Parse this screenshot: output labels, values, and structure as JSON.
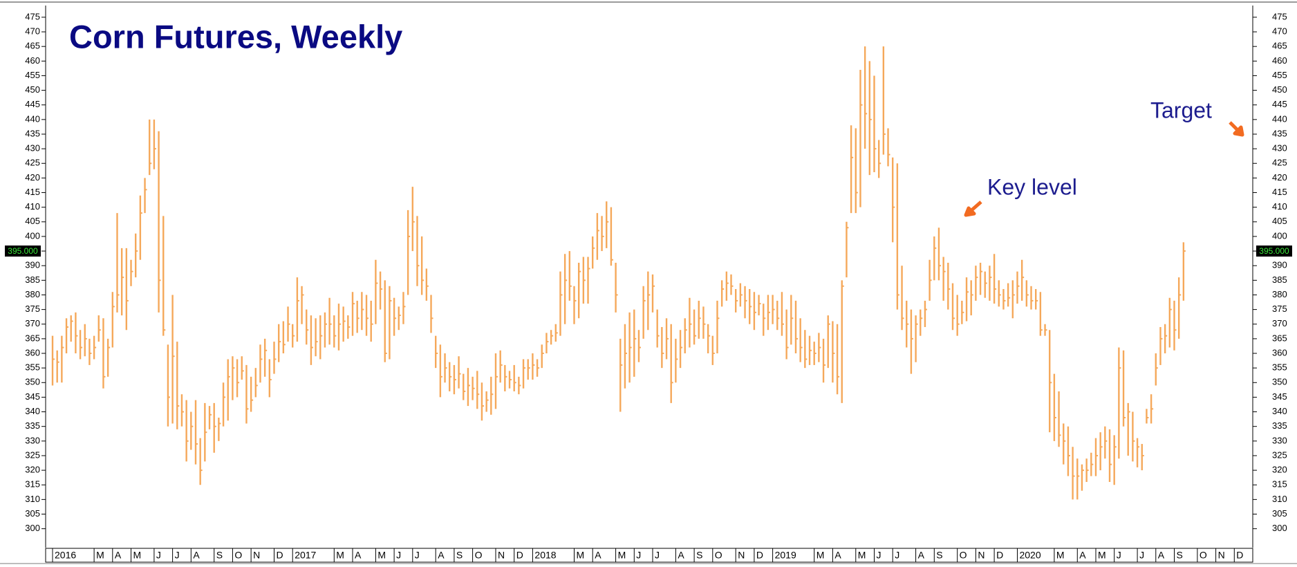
{
  "chart_data": {
    "type": "ohlc",
    "title": "Corn Futures, Weekly",
    "annotations": [
      "Key level",
      "Target"
    ],
    "price_label": {
      "value": 395,
      "label": "395.000"
    },
    "ylim": [
      294,
      479
    ],
    "yticks": [
      300,
      305,
      310,
      315,
      320,
      325,
      330,
      335,
      340,
      345,
      350,
      355,
      360,
      365,
      370,
      375,
      380,
      385,
      390,
      395,
      400,
      405,
      410,
      415,
      420,
      425,
      430,
      435,
      440,
      445,
      450,
      455,
      460,
      465,
      470,
      475
    ],
    "xlim": [
      -1.5,
      260
    ],
    "xticks": [
      {
        "value": 0,
        "label": "2016"
      },
      {
        "value": 9,
        "label": "M"
      },
      {
        "value": 13,
        "label": "A"
      },
      {
        "value": 17,
        "label": "M"
      },
      {
        "value": 22,
        "label": "J"
      },
      {
        "value": 26,
        "label": "J"
      },
      {
        "value": 30,
        "label": "A"
      },
      {
        "value": 35,
        "label": "S"
      },
      {
        "value": 39,
        "label": "O"
      },
      {
        "value": 43,
        "label": "N"
      },
      {
        "value": 48,
        "label": "D"
      },
      {
        "value": 52,
        "label": "2017"
      },
      {
        "value": 61,
        "label": "M"
      },
      {
        "value": 65,
        "label": "A"
      },
      {
        "value": 70,
        "label": "M"
      },
      {
        "value": 74,
        "label": "J"
      },
      {
        "value": 78,
        "label": "J"
      },
      {
        "value": 83,
        "label": "A"
      },
      {
        "value": 87,
        "label": "S"
      },
      {
        "value": 91,
        "label": "O"
      },
      {
        "value": 96,
        "label": "N"
      },
      {
        "value": 100,
        "label": "D"
      },
      {
        "value": 104,
        "label": "2018"
      },
      {
        "value": 113,
        "label": "M"
      },
      {
        "value": 117,
        "label": "A"
      },
      {
        "value": 122,
        "label": "M"
      },
      {
        "value": 126,
        "label": "J"
      },
      {
        "value": 130,
        "label": "J"
      },
      {
        "value": 135,
        "label": "A"
      },
      {
        "value": 139,
        "label": "S"
      },
      {
        "value": 143,
        "label": "O"
      },
      {
        "value": 148,
        "label": "N"
      },
      {
        "value": 152,
        "label": "D"
      },
      {
        "value": 156,
        "label": "2019"
      },
      {
        "value": 165,
        "label": "M"
      },
      {
        "value": 169,
        "label": "A"
      },
      {
        "value": 174,
        "label": "M"
      },
      {
        "value": 178,
        "label": "J"
      },
      {
        "value": 182,
        "label": "J"
      },
      {
        "value": 187,
        "label": "A"
      },
      {
        "value": 191,
        "label": "S"
      },
      {
        "value": 196,
        "label": "O"
      },
      {
        "value": 200,
        "label": "N"
      },
      {
        "value": 204,
        "label": "D"
      },
      {
        "value": 209,
        "label": "2020"
      },
      {
        "value": 217,
        "label": "M"
      },
      {
        "value": 222,
        "label": "A"
      },
      {
        "value": 226,
        "label": "M"
      },
      {
        "value": 230,
        "label": "J"
      },
      {
        "value": 235,
        "label": "J"
      },
      {
        "value": 239,
        "label": "A"
      },
      {
        "value": 243,
        "label": "S"
      },
      {
        "value": 248,
        "label": "O"
      },
      {
        "value": 252,
        "label": "N"
      },
      {
        "value": 256,
        "label": "D"
      }
    ],
    "series": [
      {
        "color": "#f5a85a",
        "high": [
          366,
          361,
          366,
          372,
          373,
          374,
          368,
          370,
          365,
          366,
          373,
          372,
          365,
          381,
          408,
          396,
          396,
          392,
          401,
          414,
          420,
          440,
          440,
          436,
          407,
          363,
          380,
          364,
          346,
          344,
          340,
          344,
          331,
          343,
          342,
          343,
          338,
          350,
          358,
          359,
          358,
          359,
          356,
          352,
          355,
          363,
          365,
          358,
          364,
          370,
          371,
          376,
          370,
          386,
          383,
          375,
          373,
          372,
          373,
          374,
          379,
          373,
          377,
          376,
          373,
          381,
          378,
          381,
          380,
          378,
          392,
          388,
          385,
          383,
          379,
          376,
          381,
          409,
          417,
          407,
          400,
          389,
          380,
          366,
          363,
          360,
          357,
          356,
          359,
          353,
          355,
          352,
          354,
          350,
          347,
          352,
          360,
          361,
          356,
          354,
          356,
          352,
          358,
          358,
          360,
          358,
          363,
          367,
          368,
          370,
          388,
          394,
          395,
          383,
          391,
          393,
          393,
          400,
          408,
          407,
          412,
          410,
          391,
          365,
          370,
          374,
          375,
          368,
          383,
          388,
          387,
          375,
          369,
          372,
          370,
          365,
          368,
          372,
          379,
          375,
          378,
          376,
          370,
          366,
          378,
          385,
          388,
          387,
          382,
          384,
          383,
          382,
          381,
          380,
          377,
          380,
          380,
          378,
          381,
          375,
          380,
          378,
          372,
          368,
          366,
          364,
          367,
          365,
          373,
          371,
          370,
          385,
          405,
          438,
          437,
          457,
          465,
          460,
          455,
          433,
          465,
          437,
          427,
          425,
          390,
          378,
          375,
          373,
          375,
          378,
          392,
          400,
          403,
          393,
          391,
          384,
          380,
          378,
          386,
          385,
          390,
          391,
          388,
          390,
          394,
          385,
          382,
          384,
          385,
          388,
          392,
          385,
          383,
          382,
          381,
          370,
          368,
          353,
          347,
          336,
          335,
          328,
          324,
          322,
          324,
          326,
          331,
          333,
          335,
          334,
          332,
          362,
          361,
          343,
          340,
          331,
          329,
          341,
          346,
          360,
          369,
          370,
          379,
          378,
          386,
          398
        ],
        "low": [
          349,
          350,
          350,
          360,
          364,
          360,
          358,
          359,
          356,
          358,
          364,
          348,
          352,
          362,
          374,
          373,
          368,
          383,
          386,
          392,
          408,
          421,
          423,
          374,
          366,
          335,
          336,
          334,
          335,
          323,
          327,
          322,
          315,
          323,
          334,
          326,
          330,
          335,
          337,
          344,
          345,
          351,
          336,
          340,
          345,
          350,
          352,
          345,
          353,
          357,
          360,
          364,
          362,
          364,
          370,
          363,
          356,
          359,
          358,
          362,
          363,
          362,
          361,
          364,
          365,
          366,
          367,
          368,
          366,
          364,
          370,
          375,
          357,
          358,
          366,
          368,
          370,
          380,
          395,
          383,
          380,
          378,
          367,
          355,
          345,
          350,
          347,
          346,
          348,
          344,
          342,
          344,
          341,
          337,
          340,
          339,
          341,
          350,
          347,
          348,
          347,
          346,
          348,
          351,
          351,
          352,
          355,
          360,
          363,
          364,
          366,
          370,
          378,
          370,
          372,
          377,
          377,
          389,
          392,
          395,
          396,
          390,
          374,
          340,
          348,
          350,
          352,
          357,
          365,
          368,
          374,
          362,
          355,
          358,
          343,
          350,
          355,
          360,
          362,
          363,
          365,
          365,
          360,
          356,
          360,
          376,
          378,
          380,
          374,
          376,
          372,
          370,
          368,
          373,
          366,
          368,
          370,
          368,
          366,
          358,
          363,
          360,
          357,
          355,
          356,
          356,
          357,
          350,
          355,
          350,
          346,
          343,
          386,
          408,
          408,
          410,
          430,
          421,
          422,
          420,
          428,
          424,
          398,
          375,
          368,
          362,
          353,
          357,
          366,
          369,
          378,
          385,
          385,
          378,
          375,
          368,
          366,
          370,
          371,
          373,
          378,
          380,
          379,
          378,
          377,
          376,
          375,
          376,
          372,
          377,
          378,
          376,
          375,
          375,
          366,
          366,
          333,
          330,
          328,
          322,
          318,
          310,
          310,
          313,
          316,
          318,
          318,
          320,
          324,
          316,
          315,
          324,
          335,
          325,
          323,
          321,
          320,
          336,
          336,
          349,
          356,
          360,
          362,
          361,
          365,
          378
        ],
        "close": [
          358,
          357,
          362,
          369,
          371,
          366,
          362,
          365,
          360,
          362,
          368,
          352,
          362,
          376,
          380,
          386,
          378,
          388,
          395,
          408,
          416,
          425,
          430,
          385,
          368,
          345,
          359,
          342,
          340,
          330,
          335,
          329,
          320,
          333,
          339,
          335,
          336,
          345,
          352,
          355,
          350,
          354,
          341,
          344,
          349,
          358,
          361,
          351,
          358,
          364,
          363,
          370,
          366,
          378,
          380,
          368,
          362,
          364,
          366,
          370,
          370,
          366,
          370,
          371,
          369,
          377,
          372,
          375,
          372,
          370,
          384,
          382,
          360,
          378,
          372,
          373,
          376,
          400,
          405,
          390,
          385,
          383,
          372,
          360,
          352,
          355,
          352,
          351,
          353,
          347,
          349,
          348,
          346,
          342,
          344,
          346,
          352,
          356,
          352,
          351,
          350,
          349,
          355,
          355,
          356,
          355,
          360,
          364,
          366,
          367,
          380,
          385,
          383,
          378,
          388,
          385,
          389,
          396,
          402,
          400,
          405,
          392,
          380,
          356,
          360,
          362,
          365,
          362,
          378,
          380,
          383,
          366,
          360,
          365,
          350,
          358,
          362,
          368,
          370,
          366,
          372,
          370,
          366,
          360,
          372,
          382,
          384,
          383,
          378,
          380,
          378,
          376,
          374,
          377,
          372,
          374,
          375,
          372,
          370,
          362,
          372,
          365,
          362,
          358,
          361,
          360,
          362,
          356,
          370,
          360,
          352,
          383,
          403,
          427,
          415,
          445,
          442,
          440,
          430,
          425,
          435,
          428,
          410,
          380,
          372,
          370,
          365,
          370,
          372,
          375,
          385,
          396,
          390,
          388,
          382,
          372,
          370,
          374,
          381,
          380,
          386,
          388,
          384,
          386,
          382,
          380,
          378,
          379,
          380,
          383,
          386,
          380,
          378,
          378,
          368,
          368,
          350,
          338,
          332,
          330,
          325,
          318,
          318,
          320,
          320,
          322,
          325,
          328,
          330,
          322,
          328,
          355,
          338,
          340,
          330,
          328,
          325,
          338,
          341,
          355,
          365,
          366,
          375,
          368,
          380,
          395
        ]
      }
    ]
  }
}
